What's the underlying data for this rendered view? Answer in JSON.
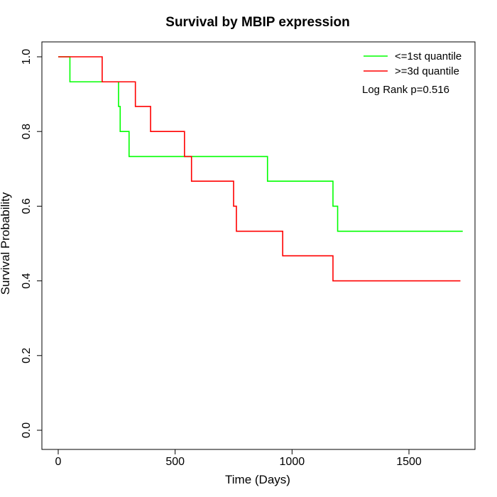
{
  "chart_data": {
    "type": "line",
    "subtype": "kaplan-meier-step",
    "title": "Survival by MBIP expression",
    "xlabel": "Time (Days)",
    "ylabel": "Survival Probability",
    "xlim": [
      0,
      1730
    ],
    "ylim": [
      0,
      1
    ],
    "xticks": [
      0,
      500,
      1000,
      1500
    ],
    "yticks": [
      0.0,
      0.2,
      0.4,
      0.6,
      0.8,
      1.0
    ],
    "xtick_labels": [
      "0",
      "500",
      "1000",
      "1500"
    ],
    "ytick_labels": [
      "0.0",
      "0.2",
      "0.4",
      "0.6",
      "0.8",
      "1.0"
    ],
    "grid": false,
    "legend_position": "top-right",
    "annotation": "Log Rank p=0.516",
    "series": [
      {
        "name": "<=1st quantile",
        "color": "#00ff00",
        "steps": [
          [
            0,
            1.0
          ],
          [
            50,
            0.933
          ],
          [
            258,
            0.867
          ],
          [
            265,
            0.8
          ],
          [
            303,
            0.733
          ],
          [
            895,
            0.667
          ],
          [
            1175,
            0.6
          ],
          [
            1195,
            0.533
          ],
          [
            1730,
            0.533
          ]
        ]
      },
      {
        "name": ">=3d quantile",
        "color": "#ff0000",
        "steps": [
          [
            0,
            1.0
          ],
          [
            188,
            0.933
          ],
          [
            330,
            0.867
          ],
          [
            395,
            0.8
          ],
          [
            540,
            0.733
          ],
          [
            570,
            0.667
          ],
          [
            750,
            0.6
          ],
          [
            762,
            0.533
          ],
          [
            960,
            0.467
          ],
          [
            1175,
            0.4
          ],
          [
            1720,
            0.4
          ]
        ]
      }
    ]
  }
}
